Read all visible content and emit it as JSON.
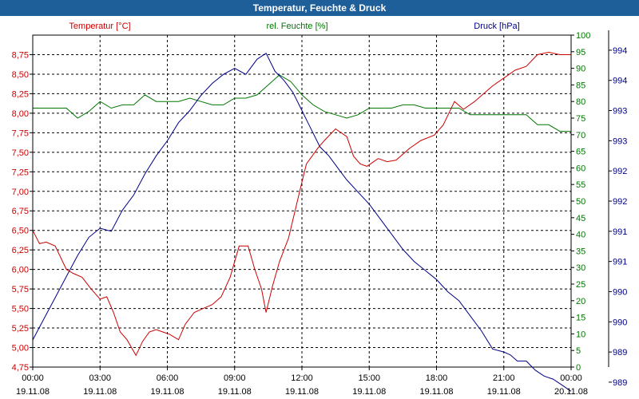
{
  "window": {
    "title": "Temperatur, Feuchte & Druck"
  },
  "chart_data": {
    "type": "line",
    "title": "Temperatur, Feuchte & Druck",
    "x_tick_labels": [
      {
        "time": "00:00",
        "date": "19.11.08"
      },
      {
        "time": "03:00",
        "date": "19.11.08"
      },
      {
        "time": "06:00",
        "date": "19.11.08"
      },
      {
        "time": "09:00",
        "date": "19.11.08"
      },
      {
        "time": "12:00",
        "date": "19.11.08"
      },
      {
        "time": "15:00",
        "date": "19.11.08"
      },
      {
        "time": "18:00",
        "date": "19.11.08"
      },
      {
        "time": "21:00",
        "date": "19.11.08"
      },
      {
        "time": "00:00",
        "date": "20.11.08"
      }
    ],
    "xlim": [
      0,
      24
    ],
    "axes": {
      "temperature": {
        "label": "Temperatur [°C]",
        "color": "#cc0000",
        "ylim": [
          4.75,
          9.0
        ],
        "ticks": [
          "8,75",
          "8,50",
          "8,25",
          "8,00",
          "7,75",
          "7,50",
          "7,25",
          "7,00",
          "6,75",
          "6,50",
          "6,25",
          "6,00",
          "5,75",
          "5,50",
          "5,25",
          "5,00",
          "4,75"
        ]
      },
      "humidity": {
        "label": "rel. Feuchte [%]",
        "color": "#007700",
        "ylim": [
          0,
          100
        ],
        "ticks": [
          "100",
          "95",
          "90",
          "85",
          "80",
          "75",
          "70",
          "65",
          "60",
          "55",
          "50",
          "45",
          "40",
          "35",
          "30",
          "25",
          "20",
          "15",
          "10",
          "5",
          "0"
        ]
      },
      "pressure": {
        "label": "Druck [hPa]",
        "color": "#000088",
        "ylim": [
          988.75,
          994.25
        ],
        "ticks": [
          "994",
          "994",
          "993",
          "993",
          "992",
          "992",
          "991",
          "991",
          "990",
          "990",
          "989",
          "989"
        ]
      }
    },
    "series": [
      {
        "name": "Temperatur [°C]",
        "axis": "temperature",
        "color": "#cc0000",
        "x": [
          0,
          0.3,
          0.6,
          1.0,
          1.5,
          1.8,
          2.2,
          2.6,
          3.0,
          3.3,
          3.6,
          3.9,
          4.2,
          4.6,
          4.9,
          5.2,
          5.5,
          5.8,
          6.1,
          6.5,
          6.8,
          7.2,
          7.6,
          8.0,
          8.4,
          8.8,
          9.2,
          9.6,
          9.9,
          10.2,
          10.4,
          10.7,
          11.0,
          11.4,
          11.9,
          12.2,
          12.7,
          13.0,
          13.5,
          14.0,
          14.3,
          14.6,
          14.9,
          15.4,
          15.8,
          16.2,
          16.8,
          17.3,
          17.9,
          18.3,
          18.8,
          19.2,
          19.7,
          20.1,
          20.5,
          21.0,
          21.5,
          22.0,
          22.5,
          23.0,
          23.5,
          24.0
        ],
        "y": [
          6.5,
          6.33,
          6.35,
          6.3,
          6.0,
          5.95,
          5.9,
          5.75,
          5.62,
          5.65,
          5.45,
          5.2,
          5.1,
          4.9,
          5.08,
          5.2,
          5.23,
          5.2,
          5.17,
          5.1,
          5.3,
          5.45,
          5.5,
          5.55,
          5.65,
          5.9,
          6.3,
          6.3,
          6.0,
          5.75,
          5.45,
          5.8,
          6.1,
          6.4,
          7.0,
          7.35,
          7.55,
          7.65,
          7.8,
          7.7,
          7.45,
          7.35,
          7.32,
          7.42,
          7.38,
          7.4,
          7.55,
          7.65,
          7.72,
          7.85,
          8.15,
          8.05,
          8.15,
          8.25,
          8.35,
          8.45,
          8.55,
          8.6,
          8.75,
          8.78,
          8.75,
          8.75
        ]
      },
      {
        "name": "rel. Feuchte [%]",
        "axis": "humidity",
        "color": "#007700",
        "x": [
          0,
          0.5,
          1.0,
          1.5,
          2.0,
          2.5,
          3.0,
          3.5,
          4.0,
          4.5,
          5.0,
          5.5,
          6.0,
          6.5,
          7.0,
          7.5,
          8.0,
          8.5,
          9.0,
          9.5,
          10.0,
          10.5,
          11.0,
          11.5,
          12.0,
          12.5,
          13.0,
          13.5,
          14.0,
          14.5,
          15.0,
          15.5,
          16.0,
          16.5,
          17.0,
          17.5,
          18.0,
          18.5,
          19.0,
          19.5,
          20.0,
          20.5,
          21.0,
          21.5,
          22.0,
          22.5,
          23.0,
          23.5,
          24.0
        ],
        "y": [
          78,
          78,
          78,
          78,
          75,
          77,
          80,
          78,
          79,
          79,
          82,
          80,
          80,
          80,
          81,
          80,
          79,
          79,
          81,
          81,
          82,
          85,
          88,
          86,
          82,
          79,
          77,
          76,
          75,
          76,
          78,
          78,
          78,
          79,
          79,
          78,
          78,
          78,
          78,
          76,
          76,
          76,
          76,
          76,
          76,
          73,
          73,
          71,
          71
        ]
      },
      {
        "name": "Druck [hPa]",
        "axis": "pressure",
        "color": "#000088",
        "x": [
          0,
          0.5,
          1.0,
          1.5,
          2.0,
          2.5,
          3.0,
          3.5,
          4.0,
          4.5,
          5.0,
          5.5,
          6.0,
          6.5,
          7.0,
          7.5,
          8.0,
          8.5,
          9.0,
          9.5,
          10.0,
          10.4,
          10.8,
          11.2,
          11.6,
          12.0,
          12.4,
          12.8,
          13.2,
          13.6,
          14.0,
          14.5,
          15.0,
          15.5,
          16.0,
          16.5,
          17.0,
          17.5,
          18.0,
          18.5,
          19.0,
          19.5,
          20.0,
          20.5,
          21.0,
          21.3,
          21.6,
          22.0,
          22.4,
          22.8,
          23.2,
          23.6,
          24.0
        ],
        "y": [
          989.2,
          989.55,
          989.9,
          990.25,
          990.6,
          990.9,
          991.05,
          991.0,
          991.35,
          991.6,
          991.95,
          992.25,
          992.5,
          992.8,
          993.0,
          993.25,
          993.45,
          993.6,
          993.7,
          993.6,
          993.85,
          993.95,
          993.65,
          993.5,
          993.3,
          993.0,
          992.7,
          992.4,
          992.25,
          992.05,
          991.85,
          991.65,
          991.45,
          991.2,
          990.95,
          990.7,
          990.5,
          990.35,
          990.2,
          990.0,
          989.85,
          989.6,
          989.35,
          989.05,
          989.0,
          988.95,
          988.85,
          988.85,
          988.7,
          988.6,
          988.55,
          988.45,
          988.35
        ]
      }
    ]
  }
}
